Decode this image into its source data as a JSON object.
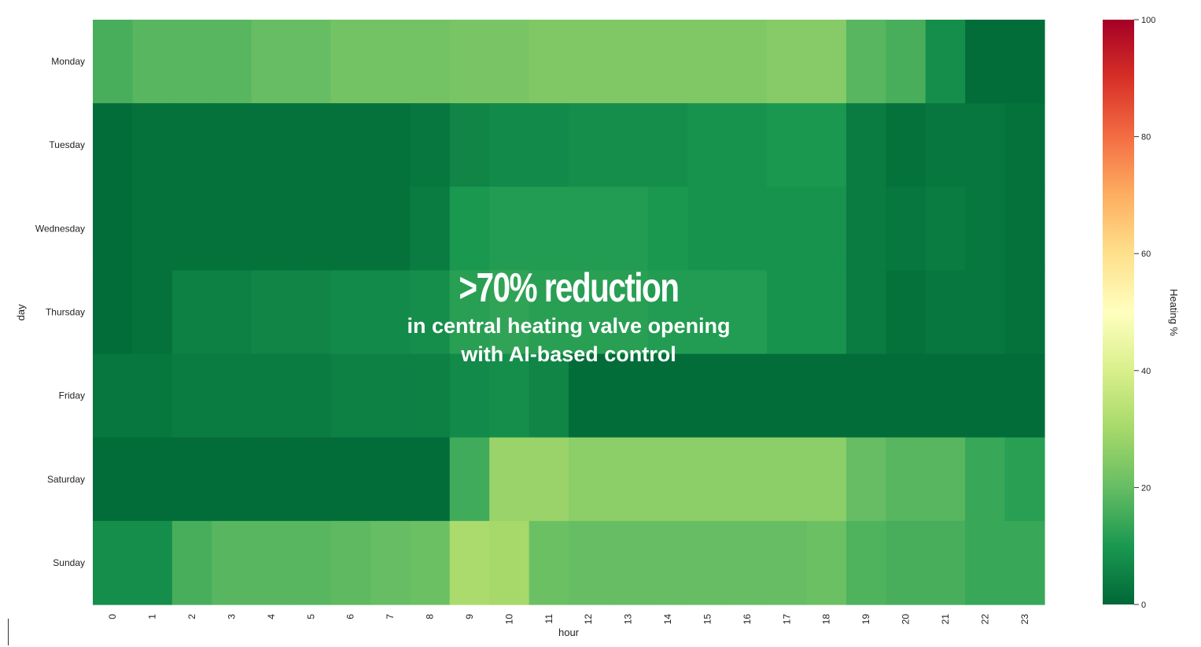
{
  "chart_data": {
    "type": "heatmap",
    "title": "",
    "xlabel": "hour",
    "ylabel": "day",
    "x": [
      "0",
      "1",
      "2",
      "3",
      "4",
      "5",
      "6",
      "7",
      "8",
      "9",
      "10",
      "11",
      "12",
      "13",
      "14",
      "15",
      "16",
      "17",
      "18",
      "19",
      "20",
      "21",
      "22",
      "23"
    ],
    "y": [
      "Monday",
      "Tuesday",
      "Wednesday",
      "Thursday",
      "Friday",
      "Saturday",
      "Sunday"
    ],
    "values": [
      [
        16,
        18,
        18,
        18,
        20,
        20,
        22,
        22,
        22,
        23,
        23,
        24,
        24,
        24,
        24,
        24,
        24,
        25,
        25,
        18,
        16,
        8,
        1,
        1
      ],
      [
        1,
        2,
        2,
        2,
        2,
        2,
        2,
        2,
        3,
        6,
        7,
        7,
        8,
        8,
        8,
        9,
        9,
        10,
        10,
        4,
        2,
        3,
        3,
        2
      ],
      [
        1,
        2,
        2,
        2,
        2,
        2,
        2,
        2,
        4,
        10,
        11,
        11,
        11,
        11,
        10,
        9,
        9,
        9,
        9,
        4,
        3,
        4,
        3,
        2
      ],
      [
        1,
        2,
        5,
        5,
        6,
        6,
        7,
        7,
        8,
        12,
        13,
        12,
        12,
        12,
        11,
        11,
        11,
        9,
        9,
        4,
        2,
        3,
        3,
        2
      ],
      [
        3,
        3,
        4,
        4,
        4,
        4,
        5,
        5,
        5,
        7,
        8,
        6,
        1,
        1,
        1,
        1,
        1,
        1,
        1,
        1,
        1,
        1,
        1,
        1
      ],
      [
        1,
        1,
        1,
        1,
        1,
        1,
        1,
        1,
        1,
        15,
        28,
        28,
        26,
        26,
        26,
        26,
        26,
        26,
        26,
        20,
        18,
        18,
        14,
        12
      ],
      [
        8,
        8,
        16,
        18,
        18,
        18,
        19,
        20,
        21,
        31,
        30,
        21,
        20,
        20,
        20,
        20,
        20,
        20,
        21,
        17,
        16,
        16,
        14,
        14
      ]
    ],
    "colormap": "RdYlGn_r",
    "colorbar": {
      "label": "Heating %",
      "range": [
        0,
        100
      ],
      "ticks": [
        0,
        20,
        40,
        60,
        80,
        100
      ]
    }
  },
  "overlay": {
    "headline": ">70% reduction",
    "line1": "in central heating valve opening",
    "line2": "with AI-based control"
  },
  "colors": {
    "overlay_text": "#ffffff"
  }
}
